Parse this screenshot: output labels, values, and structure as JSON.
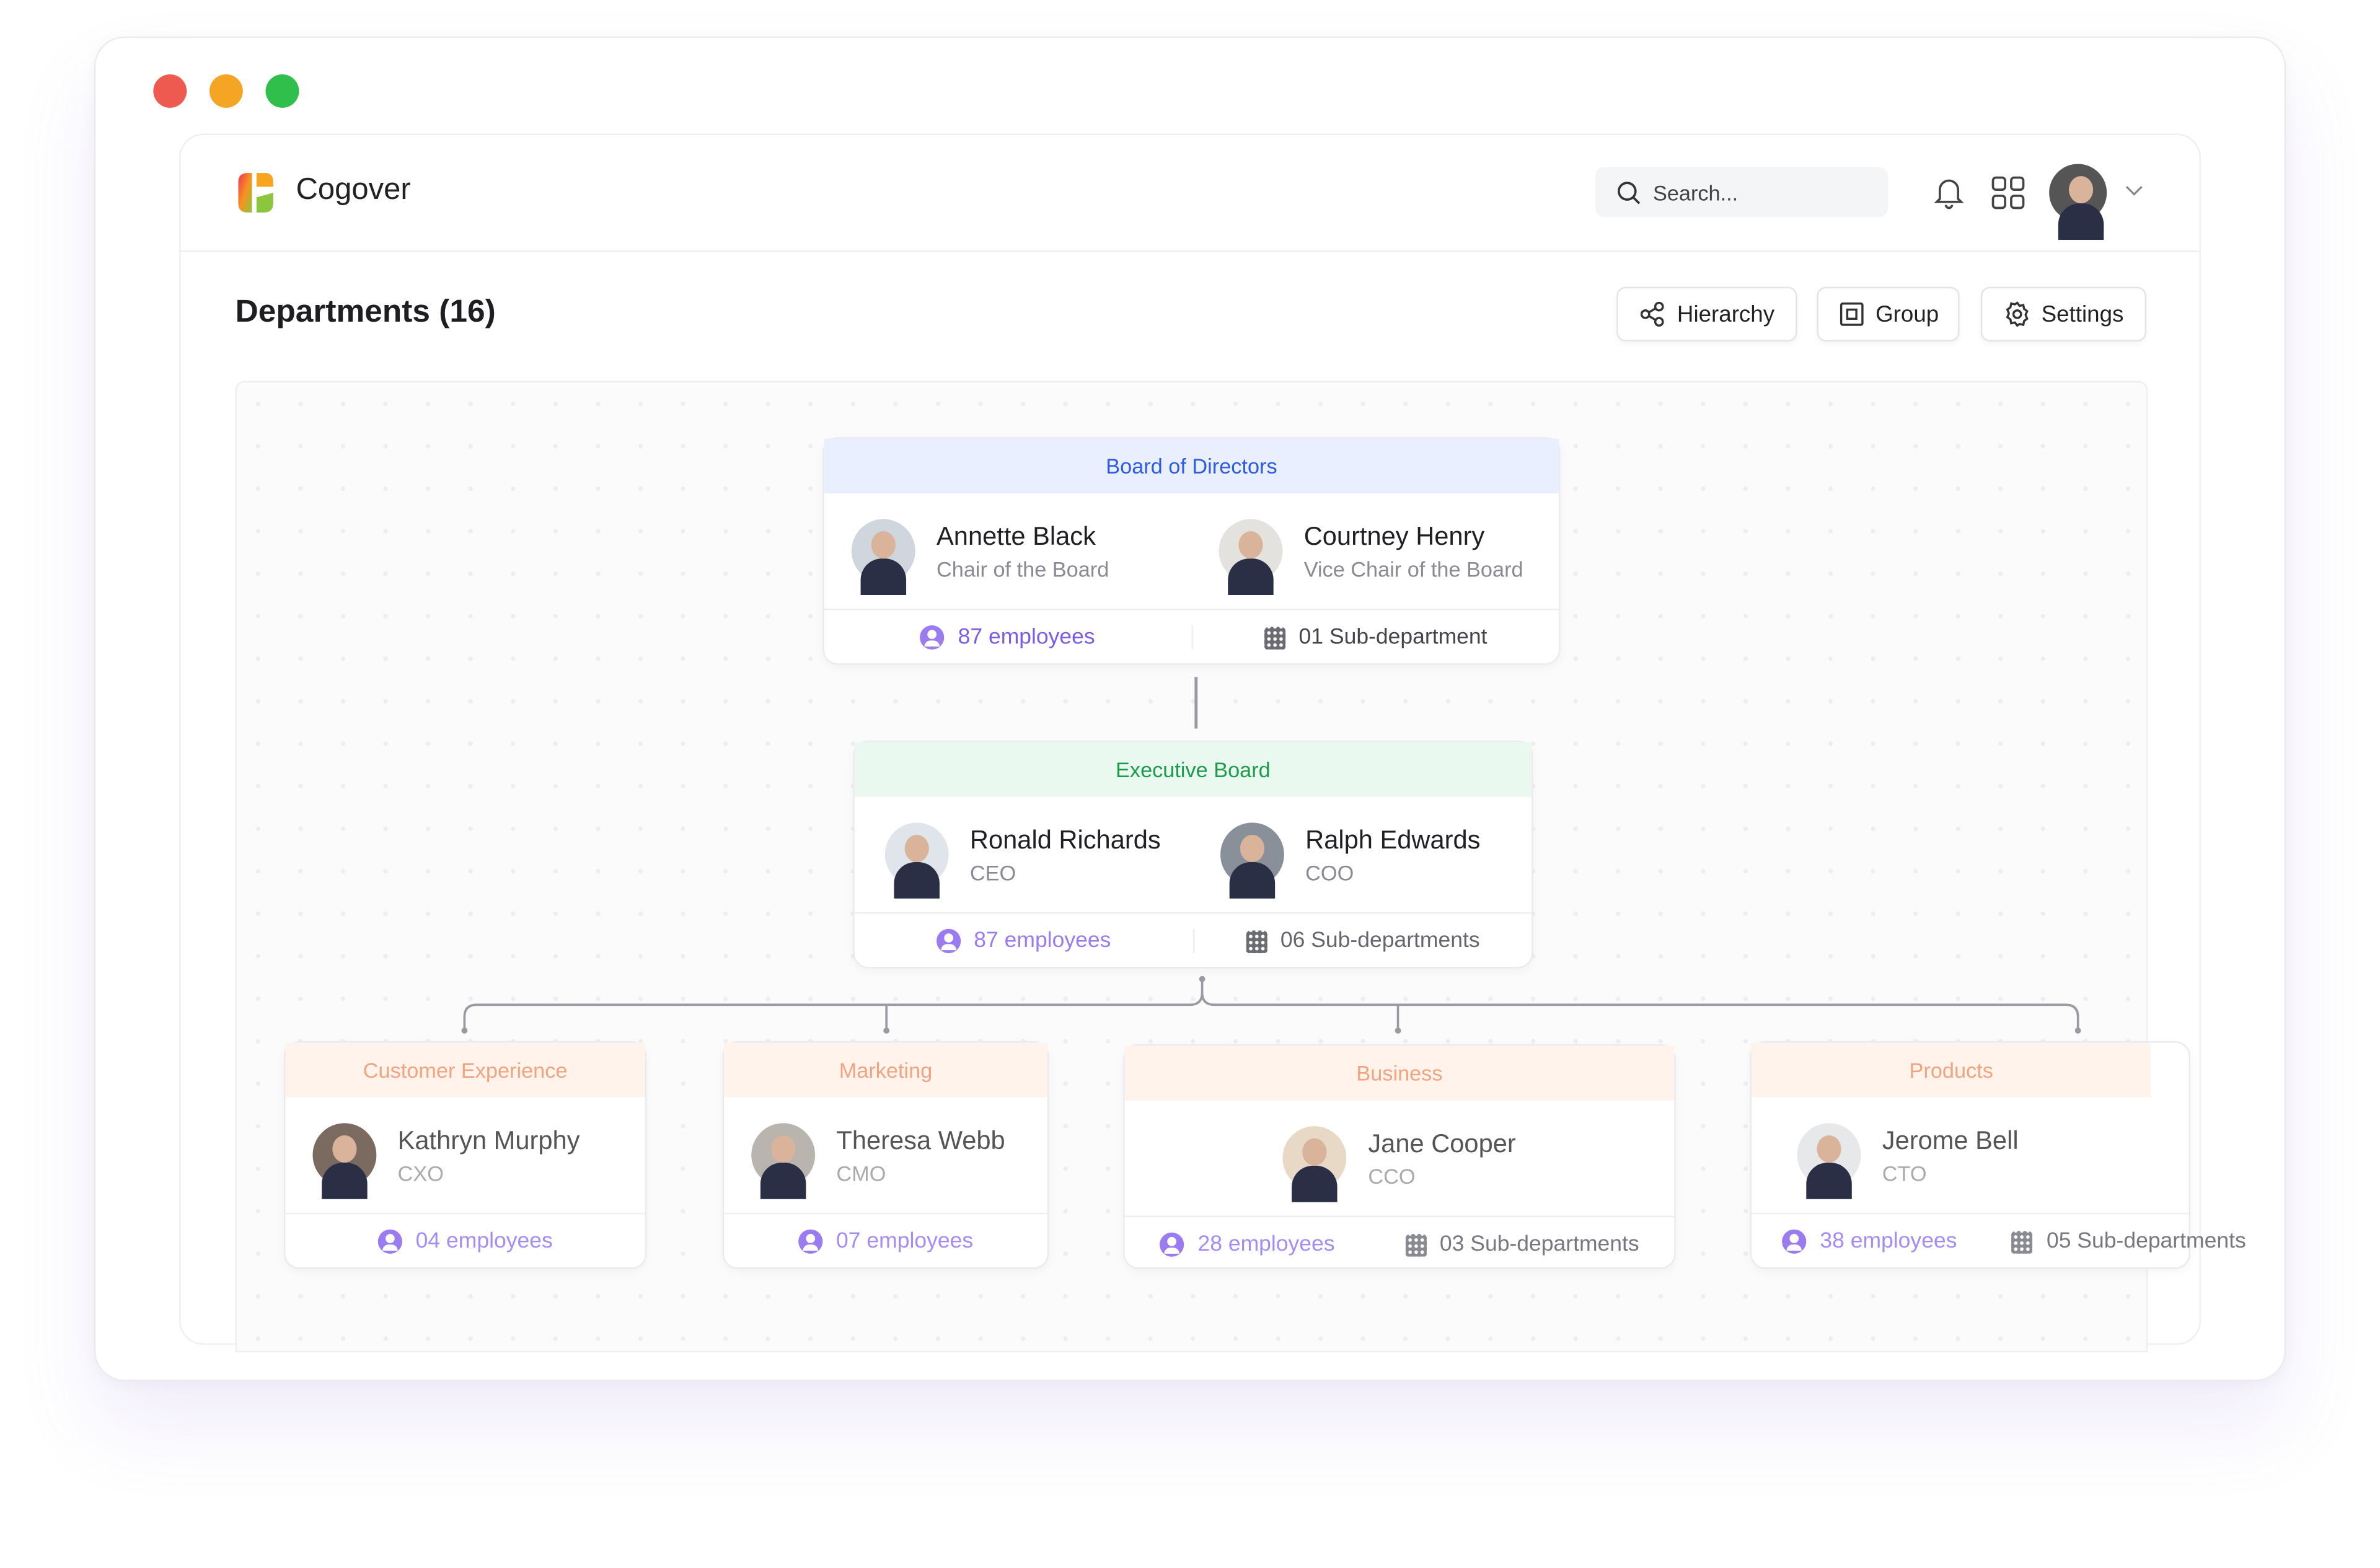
{
  "app": {
    "name": "Cogover",
    "search_placeholder": "Search..."
  },
  "page": {
    "title": "Departments (16)",
    "buttons": {
      "hierarchy": "Hierarchy",
      "group": "Group",
      "settings": "Settings"
    }
  },
  "colors": {
    "board_header": "#2d5be3",
    "exec_header": "#1e9a4c",
    "dept_header": "#f2a47f",
    "employees": "#7b5ce6"
  },
  "board": {
    "title": "Board of Directors",
    "people": [
      {
        "name": "Annette Black",
        "role": "Chair of the Board"
      },
      {
        "name": "Courtney Henry",
        "role": "Vice Chair of the Board"
      }
    ],
    "employees": "87 employees",
    "subs": "01 Sub-department"
  },
  "exec": {
    "title": "Executive Board",
    "people": [
      {
        "name": "Ronald Richards",
        "role": "CEO"
      },
      {
        "name": "Ralph Edwards",
        "role": "COO"
      }
    ],
    "employees": "87 employees",
    "subs": "06 Sub-departments"
  },
  "departments": [
    {
      "title": "Customer Experience",
      "name": "Kathryn Murphy",
      "role": "CXO",
      "employees": "04 employees"
    },
    {
      "title": "Marketing",
      "name": "Theresa Webb",
      "role": "CMO",
      "employees": "07 employees"
    },
    {
      "title": "Business",
      "name": "Jane Cooper",
      "role": "CCO",
      "employees": "28 employees",
      "subs": "03 Sub-departments"
    },
    {
      "title": "Products",
      "name": "Jerome Bell",
      "role": "CTO",
      "employees": "38 employees",
      "subs": "05 Sub-departments"
    }
  ]
}
